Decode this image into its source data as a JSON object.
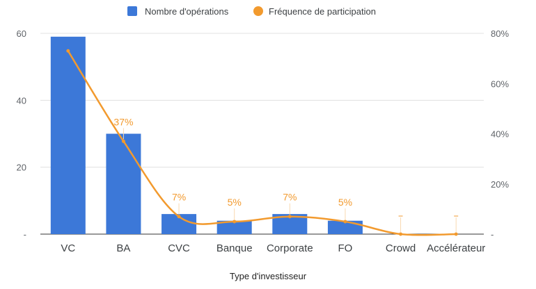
{
  "chart_data": {
    "type": "bar",
    "categories": [
      "VC",
      "BA",
      "CVC",
      "Banque",
      "Corporate",
      "FO",
      "Crowd",
      "Accélérateur"
    ],
    "series": [
      {
        "name": "Nombre d'opérations",
        "chart": "bar",
        "axis": "left",
        "color": "#3c78d8",
        "values": [
          59,
          30,
          6,
          4,
          6,
          4,
          0,
          0
        ]
      },
      {
        "name": "Fréquence de participation",
        "chart": "line",
        "axis": "right",
        "color": "#f29a2e",
        "values": [
          73,
          37,
          7,
          5,
          7,
          5,
          0,
          0
        ],
        "data_labels": [
          "",
          "37%",
          "7%",
          "5%",
          "7%",
          "5%",
          "",
          ""
        ]
      }
    ],
    "xlabel": "Type d'investisseur",
    "y_left": {
      "ylim": [
        0,
        60
      ],
      "ticks": [
        "0",
        "20",
        "40",
        "60"
      ],
      "bottom_label": "-"
    },
    "y_right": {
      "ylim": [
        0,
        80
      ],
      "ticks": [
        "0%",
        "20%",
        "40%",
        "60%",
        "80%"
      ],
      "bottom_label": "-"
    },
    "grid": true,
    "legend_position": "top-center",
    "smooth_line": true
  }
}
